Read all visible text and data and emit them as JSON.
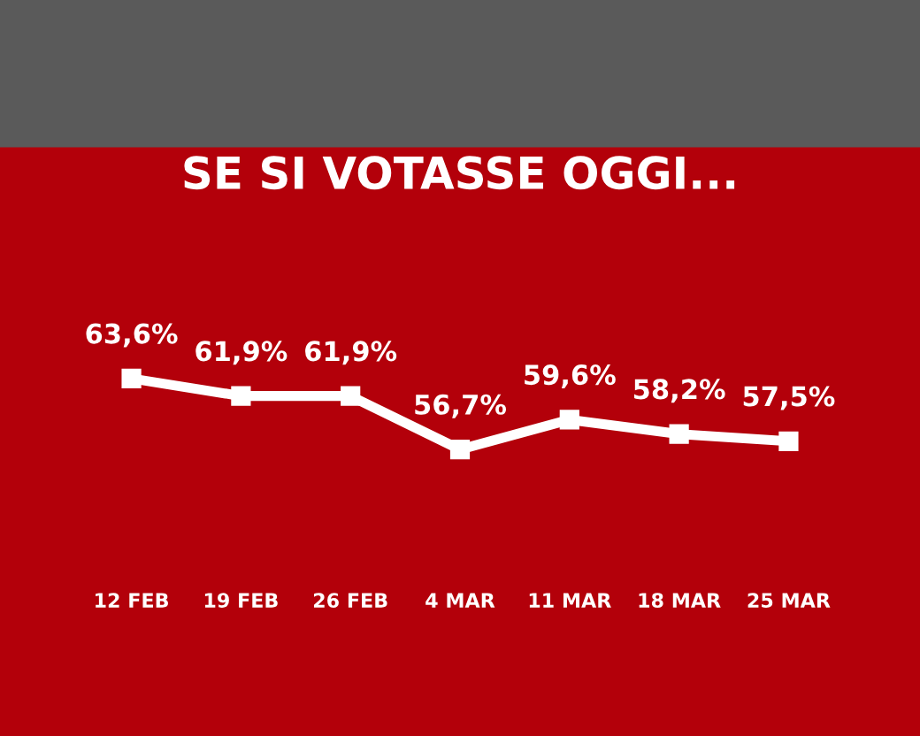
{
  "chart_data": {
    "type": "line",
    "title": "SE SI VOTASSE OGGI...",
    "categories": [
      "12 FEB",
      "19 FEB",
      "26 FEB",
      "4 MAR",
      "11 MAR",
      "18 MAR",
      "25 MAR"
    ],
    "series": [
      {
        "color": "#ffffff",
        "values": [
          63.6,
          61.9,
          61.9,
          56.7,
          59.6,
          58.2,
          57.5
        ],
        "value_labels": [
          "63,6%",
          "61,9%",
          "61,9%",
          "56,7%",
          "59,6%",
          "58,2%",
          "57,5%"
        ]
      }
    ],
    "marker": "square",
    "line_style": "solid",
    "grid": false,
    "legend": false,
    "tick_labels": "x"
  }
}
